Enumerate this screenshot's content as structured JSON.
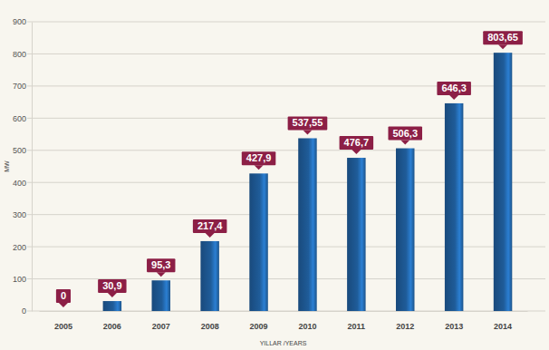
{
  "chart_data": {
    "type": "bar",
    "x_label": "YILLAR /YEARS",
    "y_label": "MW",
    "categories": [
      "2005",
      "2006",
      "2007",
      "2008",
      "2009",
      "2010",
      "2011",
      "2012",
      "2013",
      "2014"
    ],
    "values": [
      0,
      30.9,
      95.3,
      217.4,
      427.9,
      537.55,
      476.7,
      506.3,
      646.3,
      803.65
    ],
    "value_labels": [
      "0",
      "30,9",
      "95,3",
      "217,4",
      "427,9",
      "537,55",
      "476,7",
      "506,3",
      "646,3",
      "803,65"
    ],
    "color": "#1f5c99",
    "ylim": [
      0,
      900
    ],
    "yticks": [
      0,
      100,
      200,
      300,
      400,
      500,
      600,
      700,
      800,
      900
    ],
    "grid": true,
    "data_labels": true
  }
}
